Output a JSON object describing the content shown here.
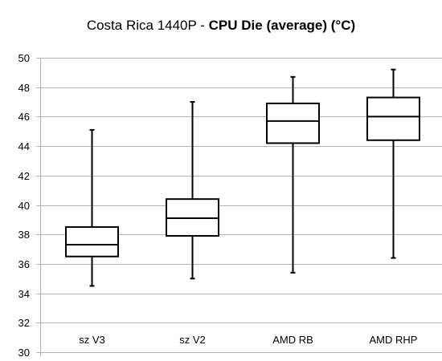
{
  "title": {
    "prefix": "Costa Rica 1440P - ",
    "bold": "CPU Die (average) (°C)"
  },
  "chart_data": {
    "type": "box",
    "title": "Costa Rica 1440P - CPU Die (average) (°C)",
    "xlabel": "",
    "ylabel": "",
    "ylim": [
      30,
      50
    ],
    "yticks": [
      "30",
      "32",
      "34",
      "36",
      "38",
      "40",
      "42",
      "44",
      "46",
      "48",
      "50"
    ],
    "grid": true,
    "categories": [
      "sz V3",
      "sz V2",
      "AMD RB",
      "AMD RHP"
    ],
    "boxes": [
      {
        "min": 34.5,
        "q1": 36.5,
        "median": 37.3,
        "q3": 38.5,
        "max": 45.1
      },
      {
        "min": 35.0,
        "q1": 37.9,
        "median": 39.1,
        "q3": 40.4,
        "max": 47.0
      },
      {
        "min": 35.4,
        "q1": 44.2,
        "median": 45.7,
        "q3": 46.9,
        "max": 48.7
      },
      {
        "min": 36.4,
        "q1": 44.4,
        "median": 46.0,
        "q3": 47.3,
        "max": 49.2
      }
    ]
  },
  "colors": {
    "grid": "#b3b3b3",
    "box": "#000000"
  }
}
